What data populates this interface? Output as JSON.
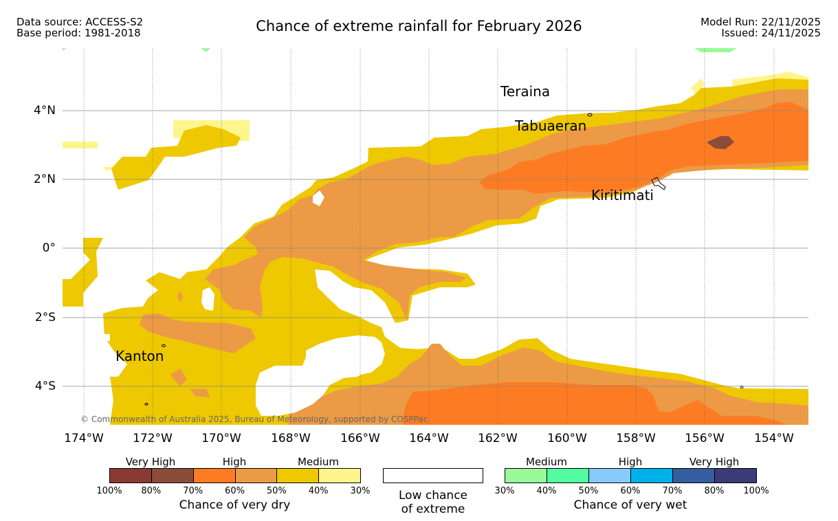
{
  "header": {
    "data_source": "Data source: ACCESS-S2",
    "base_period": "Base period: 1981-2018",
    "title": "Chance of extreme rainfall for February 2026",
    "model_run": "Model Run: 22/11/2025",
    "issued": "Issued: 24/11/2025"
  },
  "axes": {
    "lat_labels": [
      "4°N",
      "2°N",
      "0°",
      "2°S",
      "4°S"
    ],
    "lon_labels": [
      "174°W",
      "172°W",
      "170°W",
      "168°W",
      "166°W",
      "164°W",
      "162°W",
      "160°W",
      "158°W",
      "156°W",
      "154°W"
    ]
  },
  "places": [
    "Teraina",
    "Tabuaeran",
    "Kiritimati",
    "Kanton"
  ],
  "copyright": "© Commonwealth of Australia 2025, Bureau of Meteorology, supported by COSPPac",
  "legend": {
    "dry": {
      "groups": [
        "Very High",
        "High",
        "Medium"
      ],
      "ticks": [
        "100%",
        "80%",
        "70%",
        "60%",
        "50%",
        "40%",
        "30%"
      ],
      "colors": [
        "#8b3a32",
        "#8b4c3a",
        "#fd7c23",
        "#ec9a46",
        "#eec800",
        "#fef58d"
      ],
      "title": "Chance of very dry"
    },
    "low": {
      "line1": "Low chance",
      "line2": "of extreme"
    },
    "wet": {
      "groups": [
        "Medium",
        "High",
        "Very High"
      ],
      "ticks": [
        "30%",
        "40%",
        "50%",
        "60%",
        "70%",
        "80%",
        "100%"
      ],
      "colors": [
        "#99fa99",
        "#53fba1",
        "#86cbf9",
        "#00b0eb",
        "#345e9f",
        "#3c3a78"
      ],
      "title": "Chance of very wet"
    }
  }
}
